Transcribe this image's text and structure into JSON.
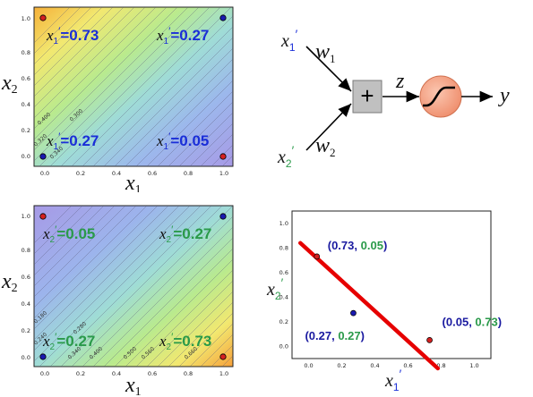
{
  "colors": {
    "x1prime": "#1a2ed8",
    "x2prime": "#2a9a4a",
    "point_red": "#d42020",
    "point_blue": "#1a1ab0",
    "decision_line": "#e60000",
    "sigmoid_fill": "#f4a384",
    "sum_box": "#c0c0c0"
  },
  "panel1": {
    "ticks_x": [
      "0.0",
      "0.2",
      "0.4",
      "0.6",
      "0.8",
      "1.0"
    ],
    "ticks_y": [
      "0.0",
      "0.2",
      "0.4",
      "0.6",
      "0.8",
      "1.0"
    ],
    "xlabel": "x",
    "xlabel_sub": "1",
    "ylabel": "x",
    "ylabel_sub": "2",
    "contour_labels": [
      "0.400",
      "0.300",
      "0.320",
      "0.340"
    ],
    "annotations": [
      {
        "var": "x",
        "sub": "1",
        "prime": "′",
        "eq": "=0.73"
      },
      {
        "var": "x",
        "sub": "1",
        "prime": "′",
        "eq": "=0.27"
      },
      {
        "var": "x",
        "sub": "1",
        "prime": "′",
        "eq": "=0.27"
      },
      {
        "var": "x",
        "sub": "1",
        "prime": "′",
        "eq": "=0.05"
      }
    ]
  },
  "panel2": {
    "ticks_x": [
      "0.0",
      "0.2",
      "0.4",
      "0.6",
      "0.8",
      "1.0"
    ],
    "ticks_y": [
      "0.0",
      "0.2",
      "0.4",
      "0.6",
      "0.8",
      "1.0"
    ],
    "xlabel": "x",
    "xlabel_sub": "1",
    "ylabel": "x",
    "ylabel_sub": "2",
    "contour_labels": [
      "0.180",
      "0.280",
      "0.240",
      "0.340",
      "0.400",
      "0.500",
      "0.560",
      "0.660"
    ],
    "annotations": [
      {
        "var": "x",
        "sub": "2",
        "prime": "′",
        "eq": "=0.05"
      },
      {
        "var": "x",
        "sub": "2",
        "prime": "′",
        "eq": "=0.27"
      },
      {
        "var": "x",
        "sub": "2",
        "prime": "′",
        "eq": "=0.27"
      },
      {
        "var": "x",
        "sub": "2",
        "prime": "′",
        "eq": "=0.73"
      }
    ]
  },
  "neuron": {
    "input1": {
      "var": "x",
      "sub": "1",
      "prime": "′"
    },
    "input2": {
      "var": "x",
      "sub": "2",
      "prime": "′"
    },
    "w1": {
      "var": "w",
      "sub": "1"
    },
    "w2": {
      "var": "w",
      "sub": "2"
    },
    "sum_symbol": "+",
    "z_label": "z",
    "y_label": "y"
  },
  "chart_data": {
    "type": "scatter",
    "xlim": [
      -0.1,
      1.1
    ],
    "ylim": [
      -0.1,
      1.1
    ],
    "ticks_x": [
      "0.0",
      "0.2",
      "0.4",
      "0.6",
      "0.8",
      "1.0"
    ],
    "ticks_y": [
      "0.0",
      "0.2",
      "0.4",
      "0.6",
      "0.8",
      "1.0"
    ],
    "xlabel": "x′1",
    "ylabel": "x′2",
    "points": [
      {
        "x": 0.05,
        "y": 0.73,
        "color": "red",
        "label_a": "0.73",
        "label_b": "0.05"
      },
      {
        "x": 0.27,
        "y": 0.27,
        "color": "blue",
        "label_a": "0.27",
        "label_b": "0.27"
      },
      {
        "x": 0.73,
        "y": 0.05,
        "color": "red",
        "label_a": "0.05",
        "label_b": "0.73"
      }
    ],
    "line": {
      "x": [
        -0.05,
        0.78
      ],
      "y": [
        0.84,
        -0.18
      ],
      "color": "#e60000"
    }
  }
}
